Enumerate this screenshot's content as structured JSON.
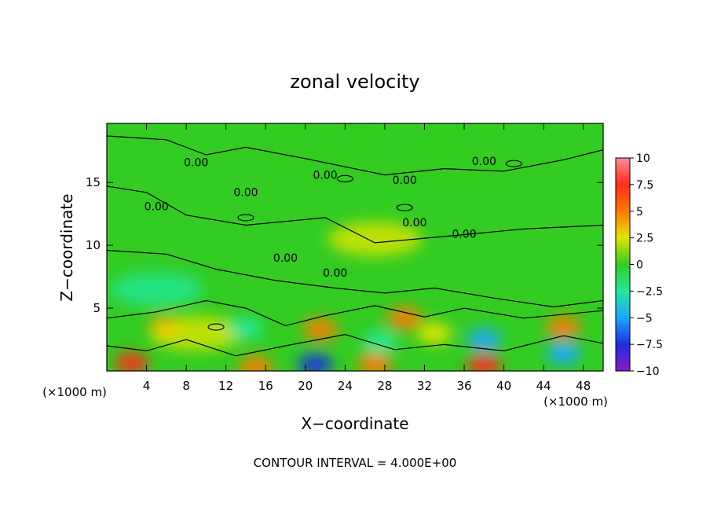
{
  "chart_data": {
    "type": "heatmap",
    "title": "zonal velocity",
    "xlabel": "X−coordinate",
    "ylabel": "Z−coordinate",
    "x_unit": "(×1000 m)",
    "footer": "CONTOUR INTERVAL = 4.000E+00",
    "xlim": [
      0,
      50
    ],
    "ylim": [
      0,
      19.7
    ],
    "x_ticks": [
      4,
      8,
      12,
      16,
      20,
      24,
      28,
      32,
      36,
      40,
      44,
      48
    ],
    "y_ticks": [
      5,
      10,
      15
    ],
    "colorbar": {
      "ticks": [
        10,
        7.5,
        5,
        2.5,
        0,
        -2.5,
        -5,
        -7.5,
        -10
      ],
      "tick_labels": [
        "10",
        "7.5",
        "5",
        "2.5",
        "0",
        "−2.5",
        "−5",
        "−7.5",
        "−10"
      ],
      "colors": [
        "#ff8c94",
        "#ff2c1a",
        "#ff7a00",
        "#e0e600",
        "#33cc22",
        "#22e89a",
        "#1aa8ff",
        "#1f2ee0",
        "#8a18c8"
      ]
    },
    "contour_label": "0.00",
    "features": [
      {
        "x": 2.5,
        "z": 0.6,
        "value": 7
      },
      {
        "x": 6,
        "z": 3.5,
        "value": 5
      },
      {
        "x": 9,
        "z": 3,
        "value": 2.5
      },
      {
        "x": 14,
        "z": 3.4,
        "value": -3
      },
      {
        "x": 15,
        "z": 0.3,
        "value": 6
      },
      {
        "x": 21.5,
        "z": 3.3,
        "value": 6
      },
      {
        "x": 21,
        "z": 0.5,
        "value": -8
      },
      {
        "x": 27,
        "z": 0.5,
        "value": 6
      },
      {
        "x": 27.5,
        "z": 2.3,
        "value": -3
      },
      {
        "x": 30,
        "z": 4.2,
        "value": 4
      },
      {
        "x": 33,
        "z": 3,
        "value": 3
      },
      {
        "x": 38,
        "z": 2.5,
        "value": -6
      },
      {
        "x": 38,
        "z": 0.4,
        "value": 7
      },
      {
        "x": 46,
        "z": 3.5,
        "value": 6
      },
      {
        "x": 46,
        "z": 1.4,
        "value": -5
      },
      {
        "x": 5,
        "z": 6.5,
        "value": -2
      },
      {
        "x": 27,
        "z": 10.5,
        "value": 1.5
      },
      {
        "x": 35,
        "z": 16.5,
        "value": -0.8
      },
      {
        "x": 22,
        "z": 17.5,
        "value": 0.5
      }
    ]
  }
}
